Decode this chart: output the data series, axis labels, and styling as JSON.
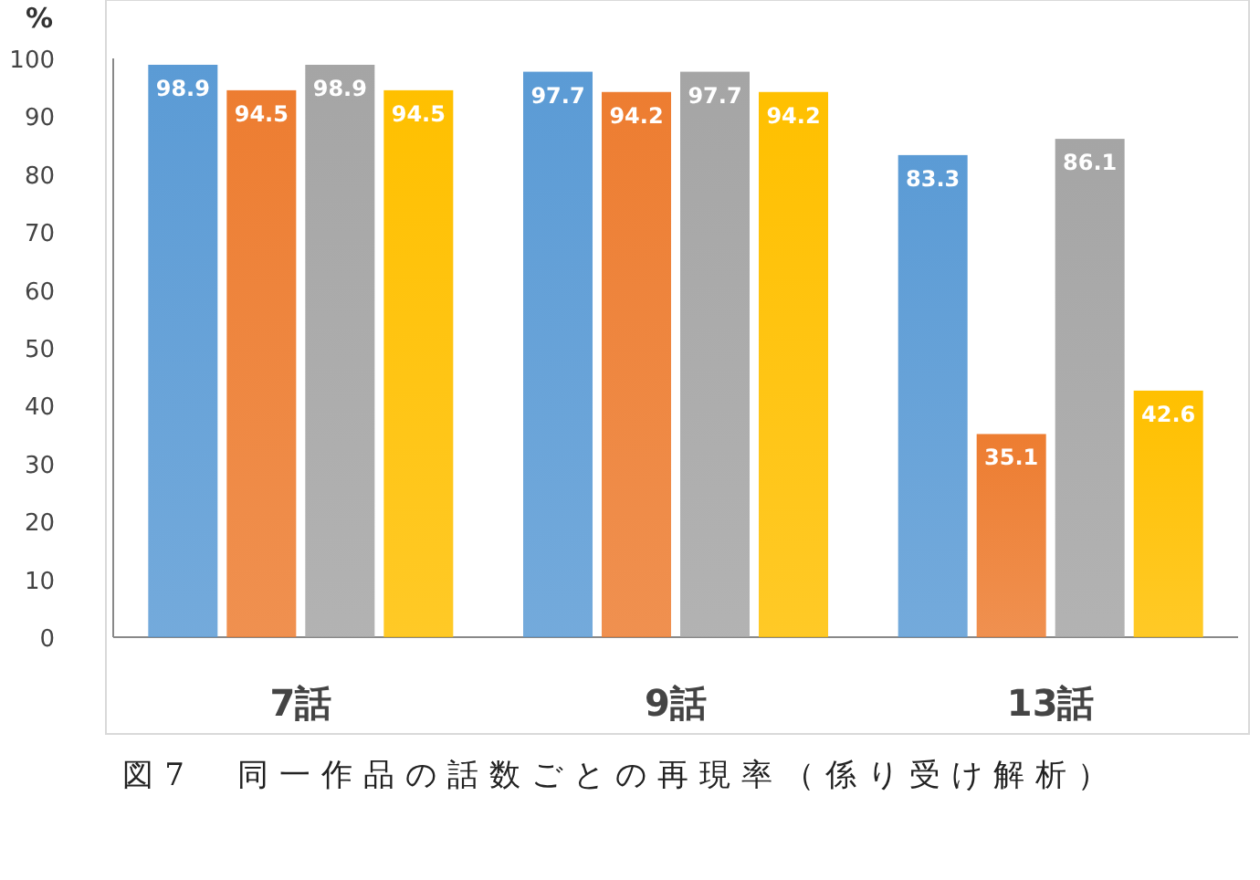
{
  "chart_data": {
    "type": "bar",
    "ylabel": "%",
    "categories": [
      "7話",
      "9話",
      "13話"
    ],
    "series": [
      {
        "color": "#5b9bd5",
        "values": [
          98.9,
          97.7,
          83.3
        ]
      },
      {
        "color": "#ed7d31",
        "values": [
          94.5,
          94.2,
          35.1
        ]
      },
      {
        "color": "#a5a5a5",
        "values": [
          98.9,
          97.7,
          86.1
        ]
      },
      {
        "color": "#ffc000",
        "values": [
          94.5,
          94.2,
          42.6
        ]
      }
    ],
    "ylim": [
      0,
      100
    ],
    "yticks": [
      0,
      10,
      20,
      30,
      40,
      50,
      60,
      70,
      80,
      90,
      100
    ],
    "grid": false,
    "data_labels": true,
    "annotations": [
      "図7　同一作品の話数ごとの再現率（係り受け解析）"
    ]
  }
}
